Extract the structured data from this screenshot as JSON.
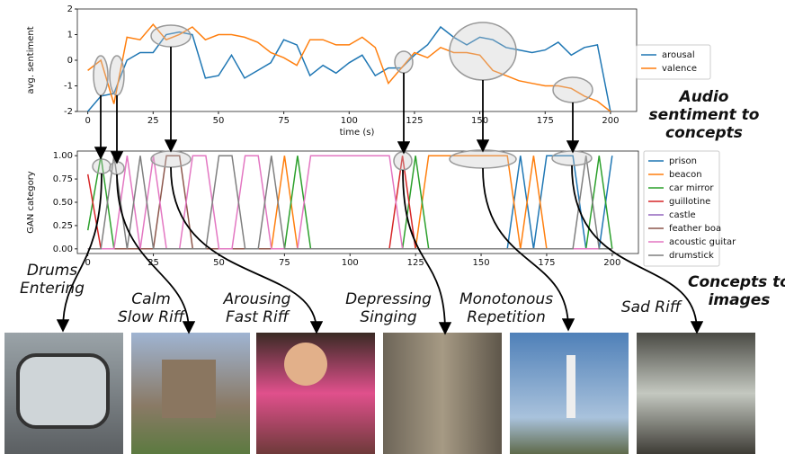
{
  "chart_data": [
    {
      "type": "line",
      "ylabel": "avg. sentiment",
      "xlabel": "time (s)",
      "grid": false,
      "legend": "outside right",
      "x": [
        0,
        5,
        10,
        15,
        20,
        25,
        30,
        35,
        40,
        45,
        50,
        55,
        60,
        65,
        70,
        75,
        80,
        85,
        90,
        95,
        100,
        105,
        110,
        115,
        120,
        125,
        130,
        135,
        140,
        145,
        150,
        155,
        160,
        165,
        170,
        175,
        180,
        185,
        190,
        195,
        200
      ],
      "xlim": [
        -4,
        210
      ],
      "xticks": [
        0,
        25,
        50,
        75,
        100,
        125,
        150,
        175,
        200
      ],
      "ylim": [
        -2,
        2
      ],
      "yticks": [
        -2,
        -1,
        0,
        1,
        2
      ],
      "series": [
        {
          "name": "arousal",
          "color": "#1f77b4",
          "values": [
            -2,
            -1.4,
            -1.3,
            0,
            0.3,
            0.3,
            1.0,
            1.1,
            1.0,
            -0.7,
            -0.6,
            0.2,
            -0.7,
            -0.4,
            -0.1,
            0.8,
            0.6,
            -0.6,
            -0.2,
            -0.5,
            -0.1,
            0.2,
            -0.6,
            -0.3,
            -0.3,
            0.2,
            0.6,
            1.3,
            0.9,
            0.6,
            0.9,
            0.8,
            0.5,
            0.4,
            0.3,
            0.4,
            0.7,
            0.2,
            0.5,
            0.6,
            -2
          ]
        },
        {
          "name": "valence",
          "color": "#ff7f0e",
          "values": [
            -0.4,
            0,
            -1.7,
            0.9,
            0.8,
            1.4,
            0.8,
            1.0,
            1.3,
            0.8,
            1.0,
            1.0,
            0.9,
            0.7,
            0.3,
            0.1,
            -0.2,
            0.8,
            0.8,
            0.6,
            0.6,
            0.9,
            0.5,
            -0.9,
            -0.3,
            0.3,
            0.1,
            0.5,
            0.3,
            0.3,
            0.2,
            -0.4,
            -0.6,
            -0.8,
            -0.9,
            -1.0,
            -1.0,
            -1.1,
            -1.4,
            -1.6,
            -2
          ]
        }
      ]
    },
    {
      "type": "line",
      "ylabel": "GAN category",
      "grid": false,
      "legend": "outside right",
      "x": [
        0,
        5,
        10,
        15,
        20,
        25,
        30,
        35,
        40,
        45,
        50,
        55,
        60,
        65,
        70,
        75,
        80,
        85,
        90,
        95,
        100,
        105,
        110,
        115,
        120,
        125,
        130,
        135,
        140,
        145,
        150,
        155,
        160,
        165,
        170,
        175,
        180,
        185,
        190,
        195,
        200
      ],
      "xlim": [
        -4,
        210
      ],
      "xticks": [
        0,
        25,
        50,
        75,
        100,
        125,
        150,
        175,
        200
      ],
      "ylim": [
        -0.05,
        1.05
      ],
      "yticks": [
        {
          "value": 0,
          "label": "0.00"
        },
        {
          "value": 0.25,
          "label": "0.25"
        },
        {
          "value": 0.5,
          "label": "0.50"
        },
        {
          "value": 0.75,
          "label": "0.75"
        },
        {
          "value": 1,
          "label": "1.00"
        }
      ],
      "series": [
        {
          "name": "prison",
          "color": "#1f77b4",
          "values": [
            0,
            0,
            0,
            0,
            0,
            0,
            0,
            0,
            0,
            0,
            0,
            0,
            0,
            0,
            0,
            0,
            0,
            0,
            0,
            0,
            0,
            0,
            0,
            0,
            0,
            0,
            0,
            0,
            0,
            0,
            0,
            0,
            0,
            1,
            0,
            1,
            1,
            1,
            0,
            0,
            1
          ]
        },
        {
          "name": "beacon",
          "color": "#ff7f0e",
          "values": [
            0,
            0,
            0,
            0,
            0,
            0,
            0,
            0,
            0,
            0,
            0,
            0,
            0,
            0,
            0,
            1,
            0,
            0,
            0,
            0,
            0,
            0,
            0,
            0,
            0,
            0,
            1,
            1,
            1,
            1,
            1,
            1,
            1,
            0,
            1,
            0,
            0,
            0,
            0,
            0,
            0
          ]
        },
        {
          "name": "car mirror",
          "color": "#2ca02c",
          "values": [
            0.2,
            1,
            0,
            0,
            0,
            0,
            0,
            0,
            0,
            0,
            0,
            0,
            0,
            0,
            0,
            0,
            1,
            0,
            0,
            0,
            0,
            0,
            0,
            0,
            0,
            1,
            0,
            0,
            0,
            0,
            0,
            0,
            0,
            0,
            0,
            0,
            0,
            0,
            0,
            1,
            0
          ]
        },
        {
          "name": "guillotine",
          "color": "#d62728",
          "values": [
            0.8,
            0,
            0,
            0,
            0,
            0,
            0,
            0,
            0,
            0,
            0,
            0,
            0,
            0,
            0,
            0,
            0,
            0,
            0,
            0,
            0,
            0,
            0,
            0,
            1,
            0,
            0,
            0,
            0,
            0,
            0,
            0,
            0,
            0,
            0,
            0,
            0,
            0,
            0,
            0,
            0
          ]
        },
        {
          "name": "castle",
          "color": "#9467bd",
          "values": [
            0,
            0,
            0,
            0,
            0,
            0,
            0,
            0,
            0,
            0,
            0,
            0,
            0,
            0,
            0,
            0,
            0,
            0,
            0,
            0,
            0,
            0,
            0,
            0,
            0,
            0,
            0,
            0,
            0,
            0,
            0,
            0,
            0,
            0,
            0,
            0,
            0,
            0,
            0,
            0,
            0
          ]
        },
        {
          "name": "feather boa",
          "color": "#8c564b",
          "values": [
            0,
            0,
            0,
            0,
            0,
            0,
            1,
            1,
            0,
            0,
            0,
            0,
            0,
            0,
            0,
            0,
            0,
            0,
            0,
            0,
            0,
            0,
            0,
            0,
            0,
            0,
            0,
            0,
            0,
            0,
            0,
            0,
            0,
            0,
            0,
            0,
            0,
            0,
            0,
            0,
            0
          ]
        },
        {
          "name": "acoustic guitar",
          "color": "#e377c2",
          "values": [
            0,
            0,
            0,
            1,
            0,
            1,
            0,
            0,
            1,
            1,
            0,
            0,
            1,
            1,
            0,
            0,
            0,
            1,
            1,
            1,
            1,
            1,
            1,
            1,
            0,
            0,
            0,
            0,
            0,
            0,
            0,
            0,
            0,
            0,
            0,
            0,
            0,
            0,
            0,
            0,
            0
          ]
        },
        {
          "name": "drumstick",
          "color": "#7f7f7f",
          "values": [
            0,
            0,
            1,
            0,
            1,
            0,
            0,
            0,
            0,
            0,
            1,
            1,
            0,
            0,
            1,
            0,
            0,
            0,
            0,
            0,
            0,
            0,
            0,
            0,
            0,
            0,
            0,
            0,
            0,
            0,
            0,
            0,
            0,
            0,
            0,
            0,
            0,
            0,
            1,
            0,
            0
          ]
        }
      ]
    }
  ],
  "annotations": {
    "sentiment_label": [
      "Audio",
      "sentiment to",
      "concepts"
    ],
    "captions": [
      [
        "Drums",
        "Entering"
      ],
      [
        "Calm",
        "Slow Riff"
      ],
      [
        "Arousing",
        "Fast Riff"
      ],
      [
        "Depressing",
        "Singing"
      ],
      [
        "Monotonous",
        "Repetition"
      ],
      [
        "Sad Riff"
      ]
    ],
    "images_label": [
      "Concepts to",
      "images"
    ]
  }
}
